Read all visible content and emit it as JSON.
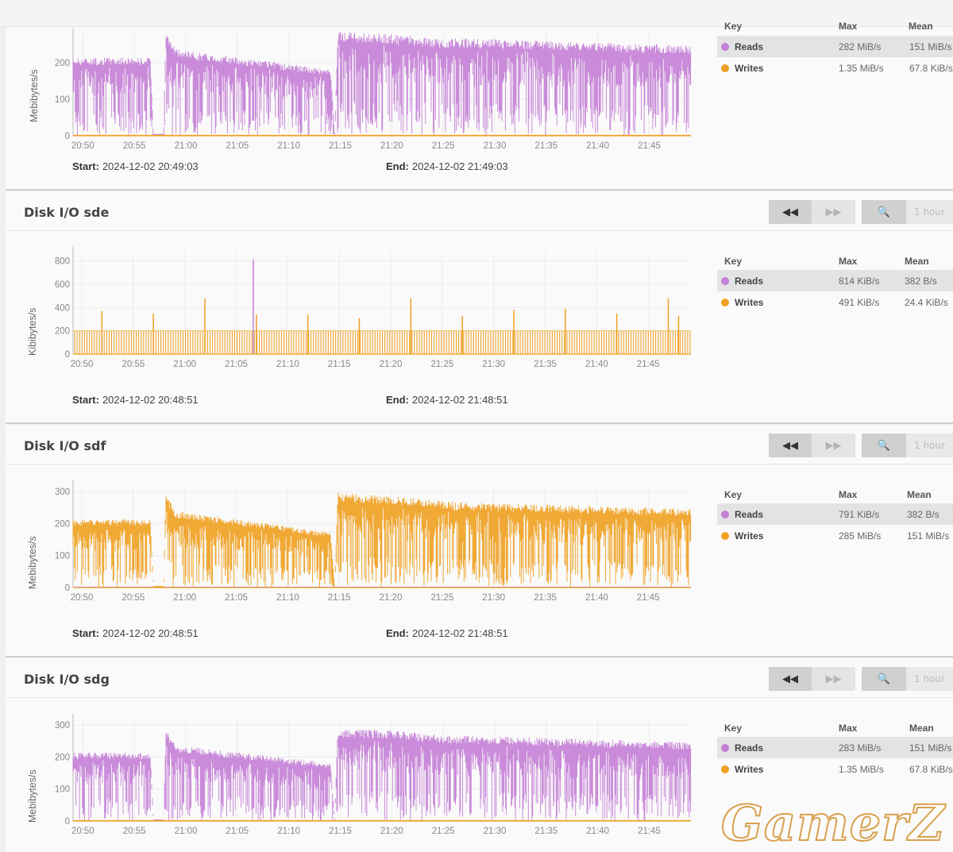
{
  "colors": {
    "reads": "#c47fd6",
    "writes": "#f0a020",
    "grid": "#ececec",
    "axis": "#999"
  },
  "legend_headers": {
    "key": "Key",
    "max": "Max",
    "mean": "Mean"
  },
  "controls": {
    "range_label": "1 hour",
    "rewind_icon": "rewind-icon",
    "forward_icon": "fast-forward-icon",
    "zoom_icon": "zoom-out-icon"
  },
  "labels": {
    "start": "Start:",
    "end": "End:"
  },
  "panels": [
    {
      "title": "",
      "ylabel": "Mebibytes/s",
      "start": "2024-12-02 20:49:03",
      "end": "2024-12-02 21:49:03",
      "legend": [
        {
          "name": "Reads",
          "max": "282 MiB/s",
          "mean": "151 MiB/s"
        },
        {
          "name": "Writes",
          "max": "1.35 MiB/s",
          "mean": "67.8 KiB/s"
        }
      ],
      "chart_data": {
        "type": "line",
        "x_ticks": [
          "20:50",
          "20:55",
          "21:00",
          "21:05",
          "21:10",
          "21:15",
          "21:20",
          "21:25",
          "21:30",
          "21:35",
          "21:40",
          "21:45"
        ],
        "y_ticks": [
          0,
          100,
          200
        ],
        "ylim": [
          0,
          280
        ],
        "ylabel": "Mebibytes/s",
        "series": [
          {
            "name": "Reads",
            "color": "#c47fd6",
            "profile": [
              [
                0,
                210
              ],
              [
                7.5,
                210
              ],
              [
                7.8,
                5
              ],
              [
                8.8,
                5
              ],
              [
                9.0,
                280
              ],
              [
                10,
                232
              ],
              [
                25,
                178
              ],
              [
                25.4,
                5
              ],
              [
                25.7,
                280
              ],
              [
                30,
                274
              ],
              [
                36,
                260
              ],
              [
                37,
                262
              ],
              [
                60,
                242
              ],
              [
                60,
                237
              ]
            ]
          },
          {
            "name": "Writes",
            "color": "#f0a020",
            "profile": [
              [
                0,
                1
              ],
              [
                60,
                1
              ]
            ]
          }
        ]
      }
    },
    {
      "title": "Disk I/O sde",
      "ylabel": "Kibibytes/s",
      "start": "2024-12-02 20:48:51",
      "end": "2024-12-02 21:48:51",
      "legend": [
        {
          "name": "Reads",
          "max": "814 KiB/s",
          "mean": "382 B/s"
        },
        {
          "name": "Writes",
          "max": "491 KiB/s",
          "mean": "24.4 KiB/s"
        }
      ],
      "chart_data": {
        "type": "line",
        "x_ticks": [
          "20:50",
          "20:55",
          "21:00",
          "21:05",
          "21:10",
          "21:15",
          "21:20",
          "21:25",
          "21:30",
          "21:35",
          "21:40",
          "21:45"
        ],
        "y_ticks": [
          0,
          200,
          400,
          600,
          800
        ],
        "ylim": [
          0,
          880
        ],
        "ylabel": "Kibibytes/s",
        "read_spike": {
          "x": 17.5,
          "y": 814
        },
        "write_baseline": 200,
        "write_spikes": [
          [
            2.8,
            370
          ],
          [
            7.8,
            350
          ],
          [
            12.8,
            480
          ],
          [
            17.8,
            340
          ],
          [
            22.8,
            340
          ],
          [
            27.8,
            310
          ],
          [
            32.8,
            480
          ],
          [
            37.8,
            330
          ],
          [
            42.8,
            380
          ],
          [
            47.8,
            390
          ],
          [
            52.8,
            350
          ],
          [
            57.8,
            480
          ],
          [
            58.8,
            330
          ]
        ]
      }
    },
    {
      "title": "Disk I/O sdf",
      "ylabel": "Mebibytes/s",
      "start": "2024-12-02 20:48:51",
      "end": "2024-12-02 21:48:51",
      "legend": [
        {
          "name": "Reads",
          "max": "791 KiB/s",
          "mean": "382 B/s"
        },
        {
          "name": "Writes",
          "max": "285 MiB/s",
          "mean": "151 MiB/s"
        }
      ],
      "chart_data": {
        "type": "line",
        "x_ticks": [
          "20:50",
          "20:55",
          "21:00",
          "21:05",
          "21:10",
          "21:15",
          "21:20",
          "21:25",
          "21:30",
          "21:35",
          "21:40",
          "21:45"
        ],
        "y_ticks": [
          0,
          100,
          200,
          300
        ],
        "ylim": [
          0,
          320
        ],
        "ylabel": "Mebibytes/s",
        "series": [
          {
            "name": "Reads",
            "color": "#c47fd6",
            "profile": [
              [
                0,
                0
              ],
              [
                60,
                0
              ]
            ]
          },
          {
            "name": "Writes",
            "color": "#f0a020",
            "profile": [
              [
                0,
                210
              ],
              [
                7.5,
                210
              ],
              [
                7.8,
                5
              ],
              [
                8.8,
                5
              ],
              [
                9.0,
                285
              ],
              [
                10,
                235
              ],
              [
                25,
                170
              ],
              [
                25.4,
                5
              ],
              [
                25.7,
                290
              ],
              [
                30,
                282
              ],
              [
                36,
                268
              ],
              [
                37,
                262
              ],
              [
                60,
                242
              ],
              [
                60,
                237
              ]
            ]
          }
        ]
      }
    },
    {
      "title": "Disk I/O sdg",
      "ylabel": "Mebibytes/s",
      "start": "",
      "end": "",
      "legend": [
        {
          "name": "Reads",
          "max": "283 MiB/s",
          "mean": "151 MiB/s"
        },
        {
          "name": "Writes",
          "max": "1.35 MiB/s",
          "mean": "67.8 KiB/s"
        }
      ],
      "chart_data": {
        "type": "line",
        "x_ticks": [
          "20:50",
          "20:55",
          "21:00",
          "21:05",
          "21:10",
          "21:15",
          "21:20",
          "21:25",
          "21:30",
          "21:35",
          "21:40",
          "21:45"
        ],
        "y_ticks": [
          0,
          100,
          200,
          300
        ],
        "ylim": [
          0,
          320
        ],
        "ylabel": "Mebibytes/s",
        "series": [
          {
            "name": "Reads",
            "color": "#c47fd6",
            "profile": [
              [
                0,
                210
              ],
              [
                7.5,
                210
              ],
              [
                7.8,
                5
              ],
              [
                8.8,
                5
              ],
              [
                9.0,
                283
              ],
              [
                10,
                232
              ],
              [
                25,
                178
              ],
              [
                25.4,
                5
              ],
              [
                25.7,
                282
              ],
              [
                30,
                280
              ],
              [
                36,
                262
              ],
              [
                37,
                262
              ],
              [
                60,
                242
              ],
              [
                60,
                237
              ]
            ]
          },
          {
            "name": "Writes",
            "color": "#f0a020",
            "profile": [
              [
                0,
                1
              ],
              [
                60,
                1
              ]
            ]
          }
        ]
      }
    }
  ],
  "watermark": "GamerZ"
}
